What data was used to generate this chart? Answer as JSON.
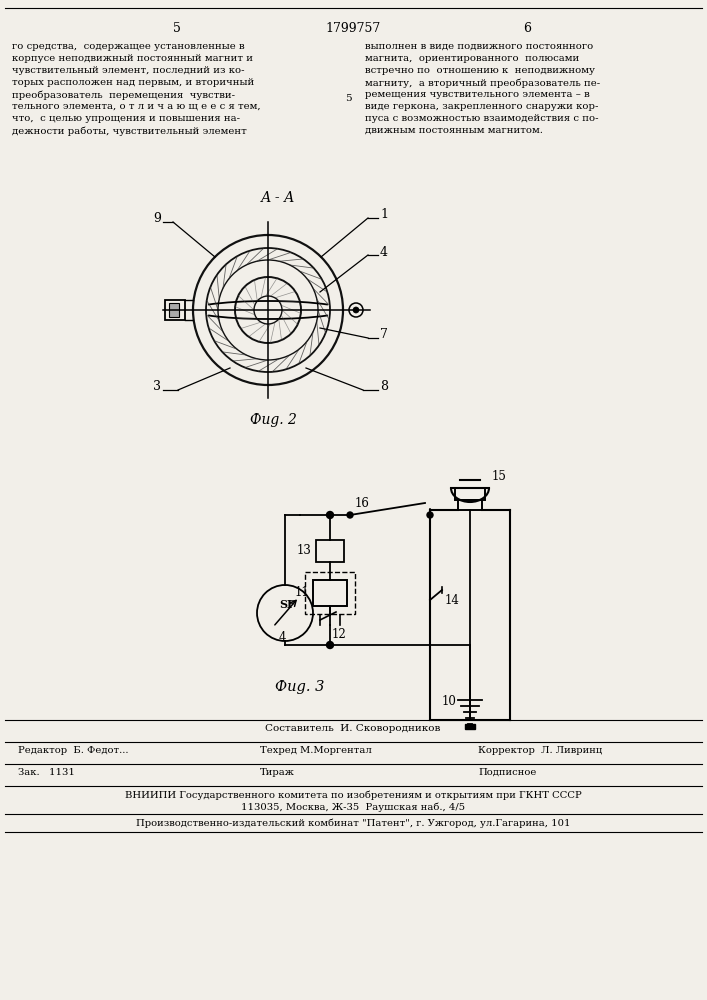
{
  "bg_color": "#f2efe9",
  "page_num_left": "5",
  "page_num_center": "1799757",
  "page_num_right": "6",
  "text_left_lines": [
    "го средства,  содержащее установленные в",
    "корпусе неподвижный постоянный магнит и",
    "чувствительный элемент, последний из ко-",
    "торых расположен над первым, и вторичный",
    "преобразователь  перемещения  чувстви-",
    "тельного элемента, о т л и ч а ю щ е е с я тем,",
    "что,  с целью упрощения и повышения на-",
    "дежности работы, чувствительный элемент"
  ],
  "text_right_lines": [
    "выполнен в виде подвижного постоянного",
    "магнита,  ориентированного  полюсами",
    "встречно по  отношению к  неподвижному",
    "магниту,  а вторичный преобразователь пе-",
    "ремещения чувствительного элемента – в",
    "виде геркона, закрепленного снаружи кор-",
    "пуса с возможностью взаимодействия с по-",
    "движным постоянным магнитом."
  ],
  "mid_num": "5",
  "fig2_label": "Фиg. 2",
  "fig3_label": "Фиg. 3",
  "aa_label": "А - А",
  "bottom_composer": "Составитель  И. Сковородников",
  "bottom_editor": "Редактор  Б. Федот...",
  "bottom_tech": "Техред М.Моргентал",
  "bottom_corrector": "Корректор  Л. Ливринц",
  "bottom_zak": "Зак.   1131",
  "bottom_tirazh": "Тираж",
  "bottom_podpisnoe": "Подписное",
  "bottom_vniip": "ВНИИПИ Государственного комитета по изобретениям и открытиям при ГКНТ СССР",
  "bottom_address": "113035, Москва, Ж-35  Раушская наб., 4/5",
  "bottom_proizv": "Производственно-издательский комбинат \"Патент\", г. Ужгород, ул.Гагарина, 101"
}
